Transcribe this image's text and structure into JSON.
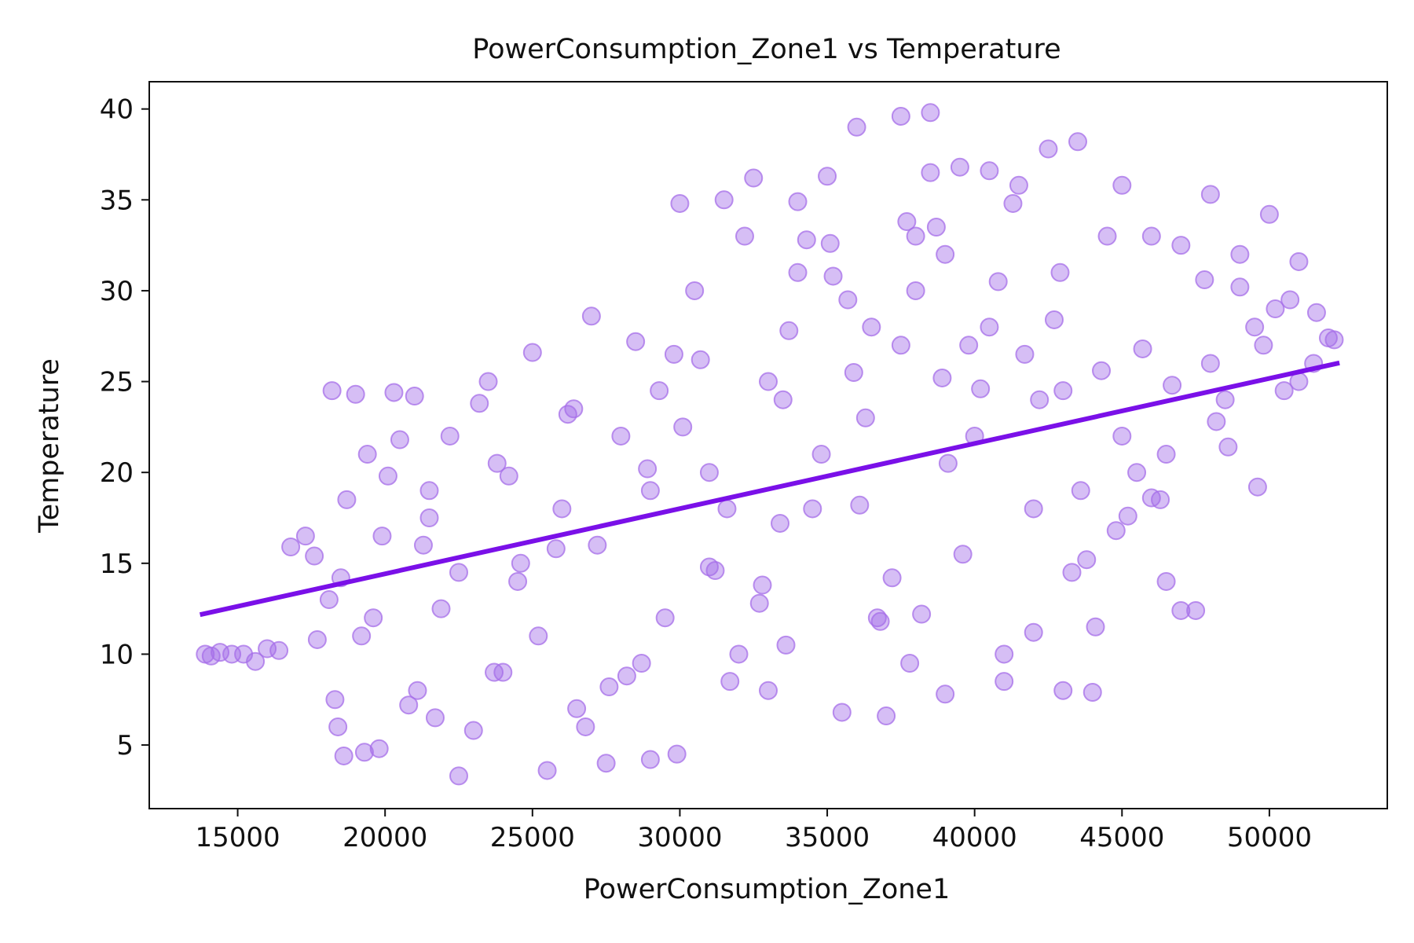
{
  "chart_data": {
    "type": "scatter",
    "title": "PowerConsumption_Zone1 vs Temperature",
    "xlabel": "PowerConsumption_Zone1",
    "ylabel": "Temperature",
    "xlim": [
      12000,
      54000
    ],
    "ylim": [
      1.5,
      41.5
    ],
    "x_ticks": [
      15000,
      20000,
      25000,
      30000,
      35000,
      40000,
      45000,
      50000
    ],
    "y_ticks": [
      5,
      10,
      15,
      20,
      25,
      30,
      35,
      40
    ],
    "grid": false,
    "legend": "none",
    "colors": {
      "points": "#a56ee8",
      "regression_line": "#7a10e8",
      "axes": "#111111"
    },
    "regression_line": {
      "x": [
        13800,
        52300
      ],
      "y": [
        12.2,
        26.0
      ]
    },
    "points": {
      "x": [
        13900,
        14100,
        14400,
        14800,
        15200,
        15600,
        16000,
        16400,
        16800,
        17300,
        17700,
        17600,
        18200,
        18700,
        19000,
        18400,
        18600,
        19300,
        19800,
        20300,
        19600,
        19900,
        20500,
        21000,
        21100,
        21500,
        21900,
        22500,
        23000,
        23500,
        24000,
        24500,
        25000,
        25500,
        26000,
        26500,
        27000,
        27500,
        28000,
        28500,
        29000,
        29500,
        30000,
        30500,
        31000,
        31500,
        32000,
        32500,
        33000,
        33500,
        34000,
        34500,
        35000,
        35500,
        36000,
        36500,
        37000,
        37500,
        38000,
        38500,
        39000,
        39500,
        40000,
        40500,
        41000,
        41500,
        42000,
        42500,
        43000,
        43500,
        44000,
        44500,
        45000,
        45500,
        46000,
        46500,
        47000,
        47500,
        48000,
        48500,
        49000,
        49500,
        50000,
        50500,
        51000,
        51500,
        52000,
        52200,
        22500,
        25200,
        27200,
        29000,
        30100,
        31600,
        33000,
        34800,
        36300,
        37500,
        38000,
        39000,
        40500,
        42200,
        43600,
        45000,
        46500,
        48000,
        49800,
        51000,
        21500,
        23800,
        26400,
        28700,
        31000,
        33400,
        35700,
        38200,
        40800,
        43300,
        45700,
        48200,
        18500,
        19200,
        20800,
        22200,
        24600,
        26800,
        29300,
        31700,
        34000,
        36700,
        39100,
        41700,
        44100,
        46300,
        47000,
        43000,
        41000,
        38700,
        36100,
        33700,
        31200,
        28900,
        26200,
        23700,
        21300,
        19400,
        29800,
        29900,
        32200,
        33600,
        35900,
        37800,
        38500,
        39600,
        42900,
        44800,
        46700,
        48600,
        49600,
        50700,
        24200,
        27600,
        32800,
        35200,
        37200,
        39800,
        42000,
        44300,
        18100,
        18300,
        20100,
        21700,
        23200,
        25800,
        28200,
        30700,
        32700,
        35100,
        37700,
        40200,
        42700,
        45200,
        47800,
        50200,
        51600,
        49000,
        46000,
        43800,
        41300,
        38900,
        36800,
        34300
      ],
      "y": [
        10.0,
        9.9,
        10.1,
        10.0,
        10.0,
        9.6,
        10.3,
        10.2,
        15.9,
        16.5,
        10.8,
        15.4,
        24.5,
        18.5,
        24.3,
        6.0,
        4.4,
        4.6,
        4.8,
        24.4,
        12.0,
        16.5,
        21.8,
        24.2,
        8.0,
        19.0,
        12.5,
        3.3,
        5.8,
        25.0,
        9.0,
        14.0,
        26.6,
        3.6,
        18.0,
        7.0,
        28.6,
        4.0,
        22.0,
        27.2,
        4.2,
        12.0,
        34.8,
        30.0,
        20.0,
        35.0,
        10.0,
        36.2,
        8.0,
        24.0,
        34.9,
        18.0,
        36.3,
        6.8,
        39.0,
        28.0,
        6.6,
        39.6,
        30.0,
        39.8,
        7.8,
        36.8,
        22.0,
        36.6,
        8.5,
        35.8,
        18.0,
        37.8,
        8.0,
        38.2,
        7.9,
        33.0,
        35.8,
        20.0,
        33.0,
        14.0,
        32.5,
        12.4,
        35.3,
        24.0,
        32.0,
        28.0,
        34.2,
        24.5,
        31.6,
        26.0,
        27.4,
        27.3,
        14.5,
        11.0,
        16.0,
        19.0,
        22.5,
        18.0,
        25.0,
        21.0,
        23.0,
        27.0,
        33.0,
        32.0,
        28.0,
        24.0,
        19.0,
        22.0,
        21.0,
        26.0,
        27.0,
        25.0,
        17.5,
        20.5,
        23.5,
        9.5,
        14.8,
        17.2,
        29.5,
        12.2,
        30.5,
        14.5,
        26.8,
        22.8,
        14.2,
        11.0,
        7.2,
        22.0,
        15.0,
        6.0,
        24.5,
        8.5,
        31.0,
        12.0,
        20.5,
        26.5,
        11.5,
        18.5,
        12.4,
        24.5,
        10.0,
        33.5,
        18.2,
        27.8,
        14.6,
        20.2,
        23.2,
        9.0,
        16.0,
        21.0,
        26.5,
        4.5,
        33.0,
        10.5,
        25.5,
        9.5,
        36.5,
        15.5,
        31.0,
        16.8,
        24.8,
        21.4,
        19.2,
        29.5,
        19.8,
        8.2,
        13.8,
        30.8,
        14.2,
        27.0,
        11.2,
        25.6,
        13.0,
        7.5,
        19.8,
        6.5,
        23.8,
        15.8,
        8.8,
        26.2,
        12.8,
        32.6,
        33.8,
        24.6,
        28.4,
        17.6,
        30.6,
        29.0,
        28.8,
        30.2,
        18.6,
        15.2,
        34.8,
        25.2,
        11.8,
        32.8
      ]
    }
  }
}
